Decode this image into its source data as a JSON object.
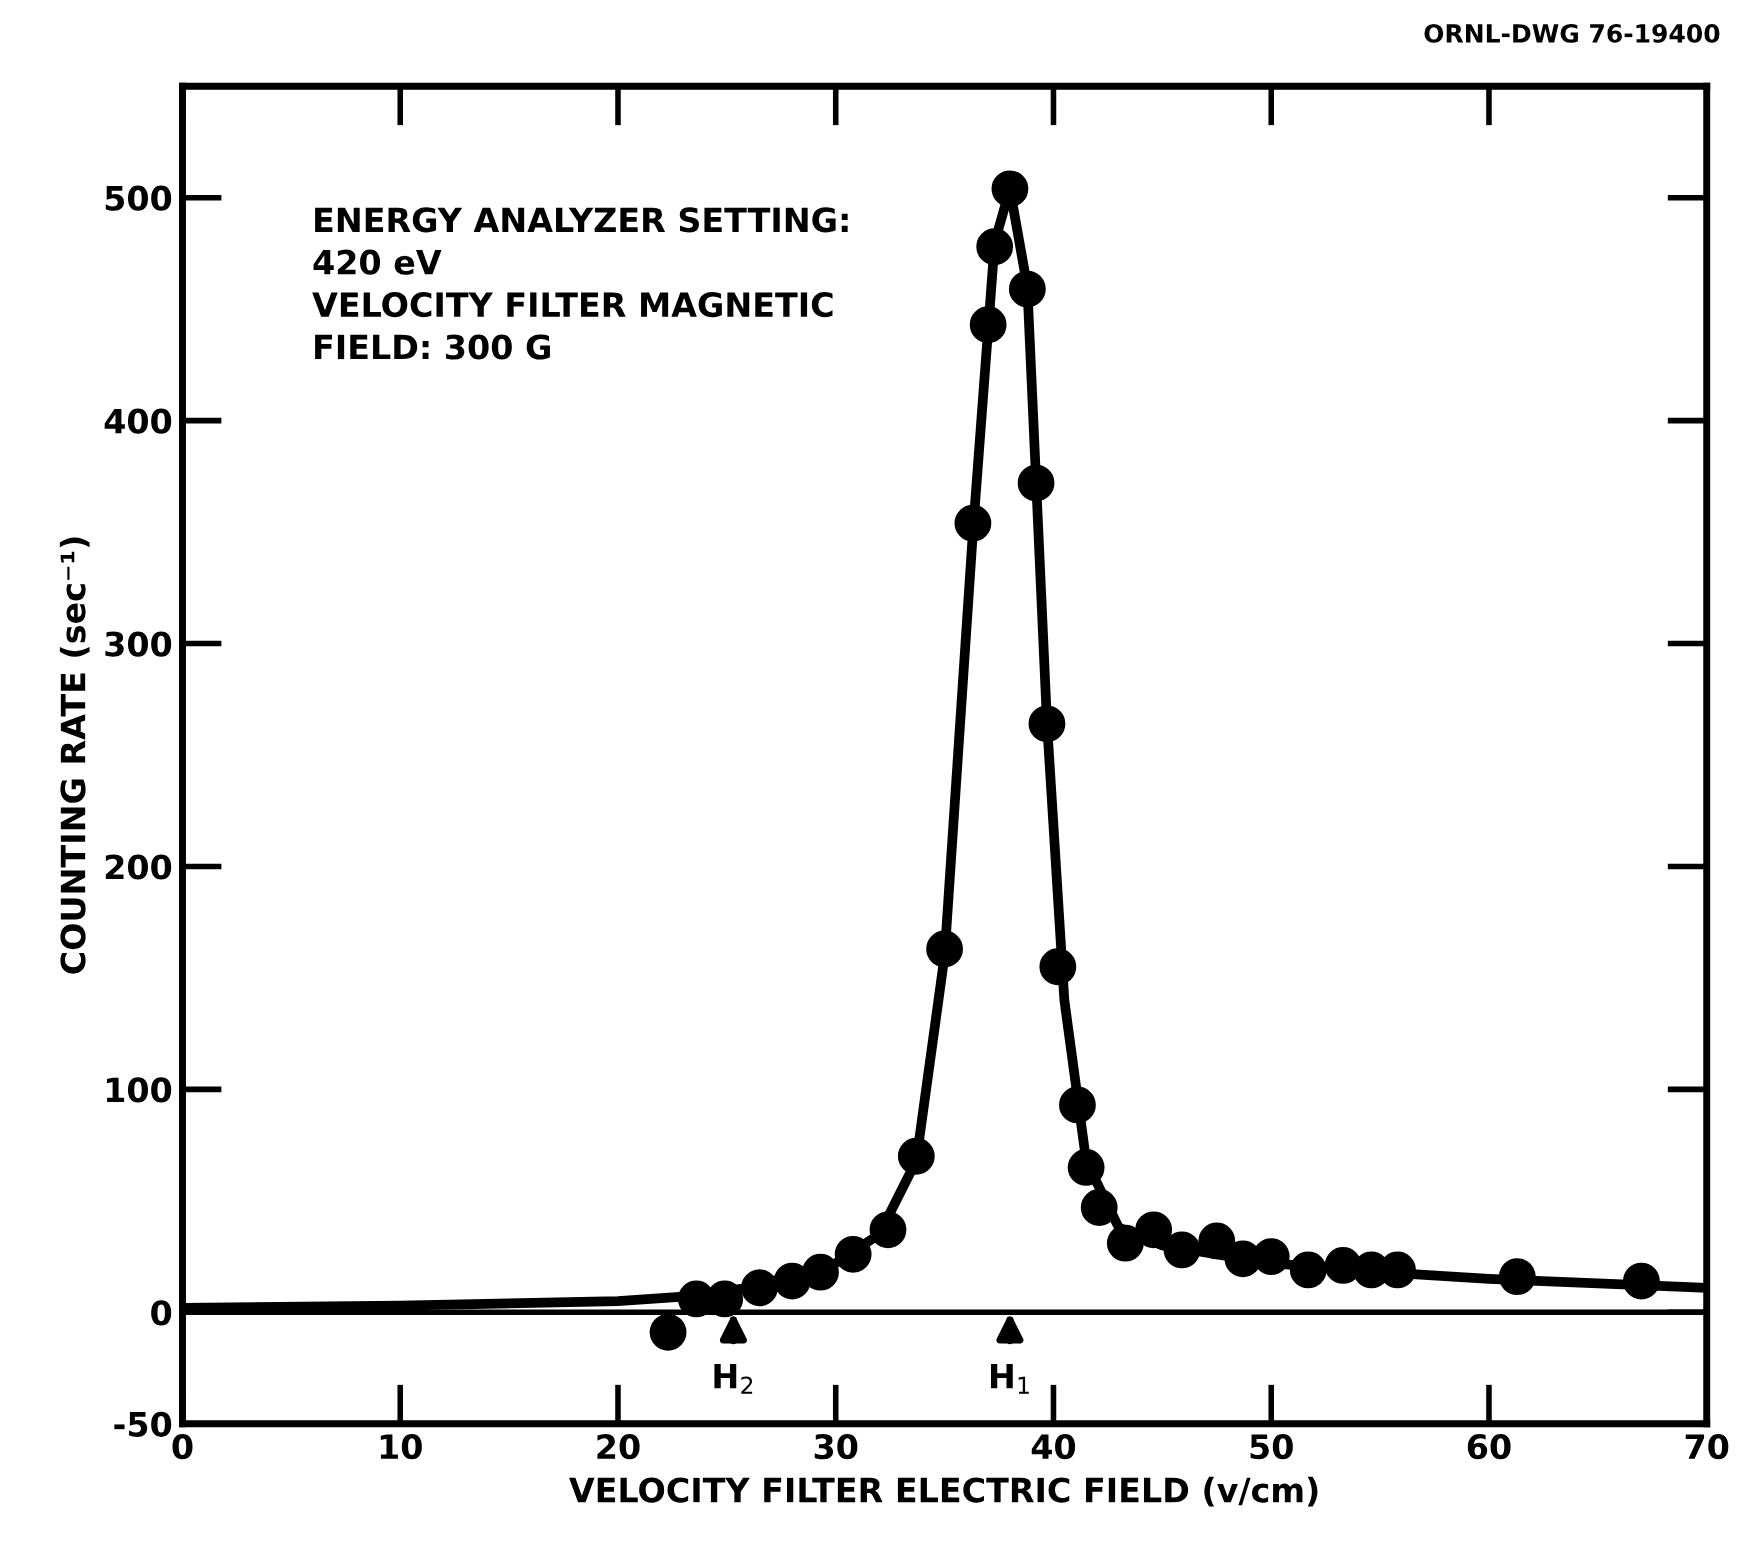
{
  "chart_data": {
    "type": "scatter",
    "xlabel": "VELOCITY FILTER ELECTRIC FIELD (v/cm)",
    "ylabel": "COUNTING RATE (sec⁻¹)",
    "xlim": [
      0,
      70
    ],
    "ylim": [
      -50,
      550
    ],
    "xticks": [
      0,
      10,
      20,
      30,
      40,
      50,
      60,
      70
    ],
    "yticks": [
      -50,
      0,
      100,
      200,
      300,
      400,
      500
    ],
    "grid": false,
    "marker": "circle",
    "ref_lines": [
      {
        "axis": "y",
        "value": 0,
        "color": "#000000"
      }
    ],
    "annotations": [
      "ENERGY ANALYZER SETTING:\n420 eV\nVELOCITY FILTER MAGNETIC\nFIELD: 300 G",
      "ORNL-DWG 76-19400",
      {
        "text": "H$_{2}$",
        "x": 25.3,
        "y": 0
      },
      {
        "text": "H$_{1}$",
        "x": 38,
        "y": 0
      }
    ],
    "series": [
      {
        "type": "line",
        "color": "#000000",
        "line_style": "solid",
        "marker": "none",
        "x": [
          0,
          10,
          20,
          23,
          26,
          30,
          32,
          33.7,
          35,
          36.3,
          37.3,
          38,
          38.8,
          39.7,
          40.5,
          41.5,
          43,
          45,
          50,
          55,
          60,
          65,
          70
        ],
        "values": [
          2,
          3,
          5,
          7,
          11,
          22,
          35,
          68,
          160,
          350,
          480,
          504,
          460,
          265,
          140,
          68,
          38,
          30,
          22,
          18,
          15,
          13,
          11
        ]
      },
      {
        "color": "#000000",
        "x": [
          22.3,
          23.6,
          24.9,
          26.5,
          28.0,
          29.3,
          30.8,
          32.4,
          33.7,
          35.0,
          36.3,
          37.0,
          37.3,
          38.0,
          38.8,
          39.2,
          39.7,
          40.2,
          41.1,
          41.5,
          42.1,
          43.3,
          44.6,
          45.9,
          47.5,
          48.7,
          50.0,
          51.7,
          53.3,
          54.6,
          55.8,
          61.3,
          67.0
        ],
        "values": [
          -9,
          6,
          6,
          11,
          14,
          18,
          26,
          37,
          70,
          163,
          354,
          443,
          478,
          504,
          459,
          372,
          264,
          155,
          93,
          65,
          47,
          31,
          37,
          28,
          32,
          24,
          25,
          19,
          21,
          19,
          19,
          16,
          14
        ]
      }
    ]
  }
}
